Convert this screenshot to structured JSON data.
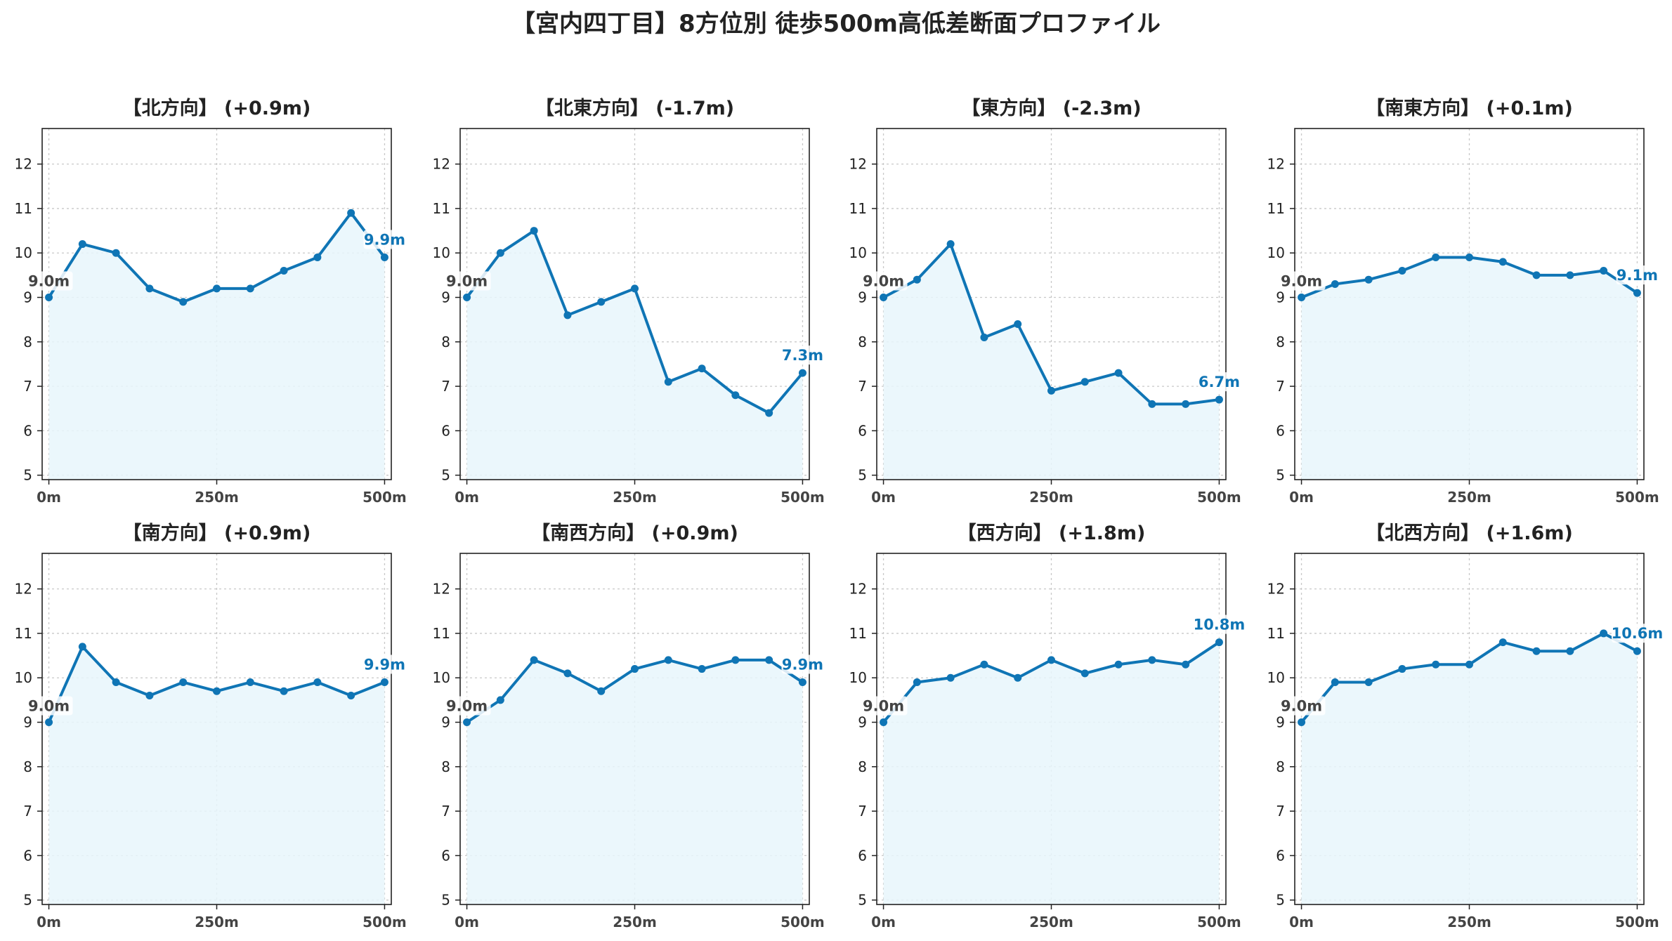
{
  "suptitle": "【宮内四丁目】8方位別 徒歩500m高低差断面プロファイル",
  "colors": {
    "line": "#0f75b5",
    "fill": "#e8f6fc",
    "start_label": "#444444"
  },
  "chart_data": [
    {
      "type": "line",
      "title": "【北方向】 (+0.9m)",
      "x": [
        0,
        50,
        100,
        150,
        200,
        250,
        300,
        350,
        400,
        450,
        500
      ],
      "x_tick_labels": [
        "0m",
        "250m",
        "500m"
      ],
      "y_ticks": [
        5,
        6,
        7,
        8,
        9,
        10,
        11,
        12
      ],
      "ylim": [
        4.9,
        12.8
      ],
      "xlim": [
        -10,
        510
      ],
      "values": [
        9.0,
        10.2,
        10.0,
        9.2,
        8.9,
        9.2,
        9.2,
        9.6,
        9.9,
        10.9,
        9.9
      ],
      "start_label": "9.0m",
      "end_label": "9.9m",
      "grid": true
    },
    {
      "type": "line",
      "title": "【北東方向】 (-1.7m)",
      "x": [
        0,
        50,
        100,
        150,
        200,
        250,
        300,
        350,
        400,
        450,
        500
      ],
      "x_tick_labels": [
        "0m",
        "250m",
        "500m"
      ],
      "y_ticks": [
        5,
        6,
        7,
        8,
        9,
        10,
        11,
        12
      ],
      "ylim": [
        4.9,
        12.8
      ],
      "xlim": [
        -10,
        510
      ],
      "values": [
        9.0,
        10.0,
        10.5,
        8.6,
        8.9,
        9.2,
        7.1,
        7.4,
        6.8,
        6.4,
        7.3
      ],
      "start_label": "9.0m",
      "end_label": "7.3m",
      "grid": true
    },
    {
      "type": "line",
      "title": "【東方向】 (-2.3m)",
      "x": [
        0,
        50,
        100,
        150,
        200,
        250,
        300,
        350,
        400,
        450,
        500
      ],
      "x_tick_labels": [
        "0m",
        "250m",
        "500m"
      ],
      "y_ticks": [
        5,
        6,
        7,
        8,
        9,
        10,
        11,
        12
      ],
      "ylim": [
        4.9,
        12.8
      ],
      "xlim": [
        -10,
        510
      ],
      "values": [
        9.0,
        9.4,
        10.2,
        8.1,
        8.4,
        6.9,
        7.1,
        7.3,
        6.6,
        6.6,
        6.7
      ],
      "start_label": "9.0m",
      "end_label": "6.7m",
      "grid": true
    },
    {
      "type": "line",
      "title": "【南東方向】 (+0.1m)",
      "x": [
        0,
        50,
        100,
        150,
        200,
        250,
        300,
        350,
        400,
        450,
        500
      ],
      "x_tick_labels": [
        "0m",
        "250m",
        "500m"
      ],
      "y_ticks": [
        5,
        6,
        7,
        8,
        9,
        10,
        11,
        12
      ],
      "ylim": [
        4.9,
        12.8
      ],
      "xlim": [
        -10,
        510
      ],
      "values": [
        9.0,
        9.3,
        9.4,
        9.6,
        9.9,
        9.9,
        9.8,
        9.5,
        9.5,
        9.6,
        9.1
      ],
      "start_label": "9.0m",
      "end_label": "9.1m",
      "grid": true
    },
    {
      "type": "line",
      "title": "【南方向】 (+0.9m)",
      "x": [
        0,
        50,
        100,
        150,
        200,
        250,
        300,
        350,
        400,
        450,
        500
      ],
      "x_tick_labels": [
        "0m",
        "250m",
        "500m"
      ],
      "y_ticks": [
        5,
        6,
        7,
        8,
        9,
        10,
        11,
        12
      ],
      "ylim": [
        4.9,
        12.8
      ],
      "xlim": [
        -10,
        510
      ],
      "values": [
        9.0,
        10.7,
        9.9,
        9.6,
        9.9,
        9.7,
        9.9,
        9.7,
        9.9,
        9.6,
        9.9
      ],
      "start_label": "9.0m",
      "end_label": "9.9m",
      "grid": true
    },
    {
      "type": "line",
      "title": "【南西方向】 (+0.9m)",
      "x": [
        0,
        50,
        100,
        150,
        200,
        250,
        300,
        350,
        400,
        450,
        500
      ],
      "x_tick_labels": [
        "0m",
        "250m",
        "500m"
      ],
      "y_ticks": [
        5,
        6,
        7,
        8,
        9,
        10,
        11,
        12
      ],
      "ylim": [
        4.9,
        12.8
      ],
      "xlim": [
        -10,
        510
      ],
      "values": [
        9.0,
        9.5,
        10.4,
        10.1,
        9.7,
        10.2,
        10.4,
        10.2,
        10.4,
        10.4,
        9.9
      ],
      "start_label": "9.0m",
      "end_label": "9.9m",
      "grid": true
    },
    {
      "type": "line",
      "title": "【西方向】 (+1.8m)",
      "x": [
        0,
        50,
        100,
        150,
        200,
        250,
        300,
        350,
        400,
        450,
        500
      ],
      "x_tick_labels": [
        "0m",
        "250m",
        "500m"
      ],
      "y_ticks": [
        5,
        6,
        7,
        8,
        9,
        10,
        11,
        12
      ],
      "ylim": [
        4.9,
        12.8
      ],
      "xlim": [
        -10,
        510
      ],
      "values": [
        9.0,
        9.9,
        10.0,
        10.3,
        10.0,
        10.4,
        10.1,
        10.3,
        10.4,
        10.3,
        10.8
      ],
      "start_label": "9.0m",
      "end_label": "10.8m",
      "grid": true
    },
    {
      "type": "line",
      "title": "【北西方向】 (+1.6m)",
      "x": [
        0,
        50,
        100,
        150,
        200,
        250,
        300,
        350,
        400,
        450,
        500
      ],
      "x_tick_labels": [
        "0m",
        "250m",
        "500m"
      ],
      "y_ticks": [
        5,
        6,
        7,
        8,
        9,
        10,
        11,
        12
      ],
      "ylim": [
        4.9,
        12.8
      ],
      "xlim": [
        -10,
        510
      ],
      "values": [
        9.0,
        9.9,
        9.9,
        10.2,
        10.3,
        10.3,
        10.8,
        10.6,
        10.6,
        11.0,
        10.6
      ],
      "start_label": "9.0m",
      "end_label": "10.6m",
      "grid": true
    }
  ]
}
